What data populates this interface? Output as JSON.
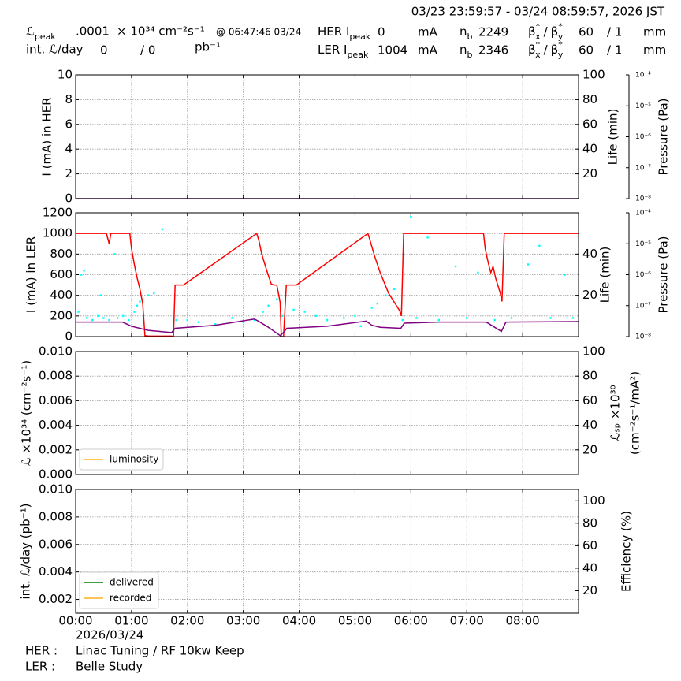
{
  "header": {
    "time_range": "03/23 23:59:57 - 03/24 08:59:57, 2026 JST",
    "lum_peak": {
      "label": "ℒ",
      "sub": "peak",
      "value": ".0001",
      "unit": "× 10³⁴ cm⁻²s⁻¹",
      "time": "@ 06:47:46 03/24"
    },
    "int_lum": {
      "label": "int. ℒ/day",
      "delivered": 0,
      "recorded": "/ 0",
      "unit": "pb⁻¹"
    },
    "her": {
      "label": "HER I",
      "sub": "peak",
      "current": 0,
      "current_unit": "mA",
      "nb": {
        "label": "n",
        "sub": "b",
        "value": 2249
      },
      "beta": {
        "a": "β",
        "a_sup": "*",
        "a_sub": "x",
        "sep": "/",
        "b": "β",
        "b_sup": "*",
        "b_sub": "y",
        "x_value": 60,
        "y_value": "/ 1",
        "unit": "mm"
      }
    },
    "ler": {
      "label": "LER I",
      "sub": "peak",
      "current": 1004,
      "current_unit": "mA",
      "nb": {
        "label": "n",
        "sub": "b",
        "value": 2346
      },
      "beta": {
        "a": "β",
        "a_sup": "*",
        "a_sub": "x",
        "sep": "/",
        "b": "β",
        "b_sup": "*",
        "b_sub": "y",
        "x_value": 60,
        "y_value": "/ 1",
        "unit": "mm"
      }
    }
  },
  "footer": {
    "her_label": "HER :",
    "her_status": "Linac Tuning / RF 10kw Keep",
    "ler_label": "LER :",
    "ler_status": "Belle Study"
  },
  "chart_data": [
    {
      "type": "line",
      "ylabel": "I (mA) in HER",
      "y2label": "Life (min)",
      "y3label": "Pressure (Pa)",
      "grid": true,
      "show_xticklabels": false,
      "xlim": [
        0,
        9
      ],
      "xticks": [
        {
          "value": 0,
          "label": "00:00"
        },
        {
          "value": 1,
          "label": "01:00"
        },
        {
          "value": 2,
          "label": "02:00"
        },
        {
          "value": 3,
          "label": "03:00"
        },
        {
          "value": 4,
          "label": "04:00"
        },
        {
          "value": 5,
          "label": "05:00"
        },
        {
          "value": 6,
          "label": "06:00"
        },
        {
          "value": 7,
          "label": "07:00"
        },
        {
          "value": 8,
          "label": "08:00"
        }
      ],
      "ylim": [
        0,
        10
      ],
      "yticks": [
        0,
        2,
        4,
        6,
        8,
        10
      ],
      "y2lim": [
        0,
        100
      ],
      "y2ticks": [
        20,
        40,
        60,
        80,
        100
      ],
      "y3log": true,
      "y3lim": [
        1e-08,
        0.0001
      ],
      "y3ticks": [
        {
          "value": 1e-08,
          "label": "10⁻⁸"
        },
        {
          "value": 1e-07,
          "label": "10⁻⁷"
        },
        {
          "value": 1e-06,
          "label": "10⁻⁶"
        },
        {
          "value": 1e-05,
          "label": "10⁻⁵"
        },
        {
          "value": 0.0001,
          "label": "10⁻⁴"
        }
      ],
      "series": [
        {
          "color": "#800080",
          "x": [
            0,
            9
          ],
          "values": [
            0,
            0
          ]
        }
      ]
    },
    {
      "type": "line",
      "ylabel": "I (mA) in LER",
      "y2label": "Life (min)",
      "y3label": "Pressure (Pa)",
      "grid": true,
      "show_xticklabels": false,
      "xlim": [
        0,
        9
      ],
      "xticks": [
        {
          "value": 0,
          "label": "00:00"
        },
        {
          "value": 1,
          "label": "01:00"
        },
        {
          "value": 2,
          "label": "02:00"
        },
        {
          "value": 3,
          "label": "03:00"
        },
        {
          "value": 4,
          "label": "04:00"
        },
        {
          "value": 5,
          "label": "05:00"
        },
        {
          "value": 6,
          "label": "06:00"
        },
        {
          "value": 7,
          "label": "07:00"
        },
        {
          "value": 8,
          "label": "08:00"
        }
      ],
      "ylim": [
        0,
        1200
      ],
      "yticks": [
        0,
        200,
        400,
        600,
        800,
        1000,
        1200
      ],
      "y2lim": [
        0,
        60
      ],
      "y2ticks": [
        20,
        40
      ],
      "y3log": true,
      "y3lim": [
        1e-08,
        0.0001
      ],
      "y3ticks": [
        {
          "value": 1e-08,
          "label": "10⁻⁸"
        },
        {
          "value": 1e-07,
          "label": "10⁻⁷"
        },
        {
          "value": 1e-06,
          "label": "10⁻⁶"
        },
        {
          "value": 1e-05,
          "label": "10⁻⁵"
        },
        {
          "value": 0.0001,
          "label": "10⁻⁴"
        }
      ],
      "series": [
        {
          "color": "#00ffff",
          "mode": "markers",
          "axis": "y2",
          "x": [
            0.05,
            0.1,
            0.15,
            0.2,
            0.3,
            0.4,
            0.45,
            0.5,
            0.6,
            0.7,
            0.75,
            0.85,
            0.95,
            1.05,
            1.1,
            1.15,
            1.2,
            1.3,
            1.4,
            1.55,
            1.8,
            2.0,
            2.2,
            2.5,
            2.8,
            3.0,
            3.2,
            3.35,
            3.45,
            3.6,
            3.7,
            3.9,
            4.1,
            4.3,
            4.5,
            4.8,
            5.0,
            5.1,
            5.3,
            5.4,
            5.55,
            5.7,
            5.85,
            6.0,
            6.1,
            6.3,
            6.5,
            6.8,
            7.0,
            7.2,
            7.5,
            7.8,
            8.1,
            8.3,
            8.5,
            8.75,
            8.9
          ],
          "values": [
            12,
            30,
            32,
            9,
            8,
            10,
            20,
            9,
            8,
            40,
            9,
            10,
            8,
            12,
            15,
            17,
            18,
            20,
            21,
            52,
            8,
            8,
            7,
            6,
            9,
            7,
            8,
            12,
            15,
            18,
            10,
            13,
            12,
            10,
            8,
            9,
            10,
            5,
            14,
            16,
            20,
            23,
            8,
            58,
            9,
            48,
            8,
            34,
            9,
            31,
            8,
            9,
            35,
            44,
            9,
            30,
            9
          ]
        },
        {
          "color": "#ff0000",
          "x": [
            0,
            0.55,
            0.6,
            0.63,
            0.97,
            1.0,
            1.05,
            1.1,
            1.15,
            1.2,
            1.24,
            1.3,
            1.72,
            1.75,
            1.78,
            1.93,
            3.24,
            3.28,
            3.33,
            3.42,
            3.5,
            3.55,
            3.6,
            3.66,
            3.68,
            3.72,
            3.77,
            3.95,
            5.23,
            5.27,
            5.35,
            5.45,
            5.6,
            5.8,
            5.83,
            5.87,
            5.9,
            7.3,
            7.33,
            7.37,
            7.4,
            7.43,
            7.47,
            7.52,
            7.6,
            7.63,
            7.67,
            7.7,
            9.0
          ],
          "values": [
            1000,
            1000,
            900,
            1000,
            1000,
            850,
            700,
            570,
            460,
            320,
            10,
            5,
            5,
            0,
            500,
            500,
            1000,
            930,
            800,
            640,
            510,
            500,
            500,
            330,
            0,
            0,
            500,
            500,
            1000,
            930,
            780,
            620,
            420,
            250,
            200,
            1000,
            1000,
            1000,
            850,
            750,
            680,
            620,
            680,
            560,
            420,
            340,
            1000,
            1000,
            1000
          ]
        },
        {
          "color": "#800080",
          "x": [
            0,
            0.84,
            1.0,
            1.3,
            1.69,
            1.72,
            1.78,
            2.5,
            3.2,
            3.3,
            3.45,
            3.66,
            3.72,
            3.78,
            4.5,
            5.2,
            5.3,
            5.45,
            5.82,
            5.88,
            6.5,
            7.35,
            7.62,
            7.7,
            9.0
          ],
          "values": [
            140,
            140,
            100,
            60,
            40,
            40,
            80,
            110,
            170,
            140,
            90,
            10,
            40,
            80,
            100,
            150,
            110,
            90,
            80,
            130,
            140,
            140,
            50,
            140,
            145
          ]
        }
      ]
    },
    {
      "type": "line",
      "ylabel": "ℒ ×10³⁴ (cm⁻²s⁻¹)",
      "y2label": [
        "ℒₛₚ ×10³⁰",
        "(cm⁻²s⁻¹/mA²)"
      ],
      "grid": true,
      "show_xticklabels": false,
      "legend": "lower left",
      "xlim": [
        0,
        9
      ],
      "xticks": [
        {
          "value": 0,
          "label": "00:00"
        },
        {
          "value": 1,
          "label": "01:00"
        },
        {
          "value": 2,
          "label": "02:00"
        },
        {
          "value": 3,
          "label": "03:00"
        },
        {
          "value": 4,
          "label": "04:00"
        },
        {
          "value": 5,
          "label": "05:00"
        },
        {
          "value": 6,
          "label": "06:00"
        },
        {
          "value": 7,
          "label": "07:00"
        },
        {
          "value": 8,
          "label": "08:00"
        }
      ],
      "ylim": [
        0,
        0.01
      ],
      "yticks": [
        {
          "value": 0,
          "label": "0.000"
        },
        0.002,
        0.004,
        0.006,
        0.008,
        {
          "value": 0.01,
          "label": "0.010"
        }
      ],
      "y2lim": [
        0,
        100
      ],
      "y2ticks": [
        20,
        40,
        60,
        80,
        100
      ],
      "series": [
        {
          "name": "luminosity",
          "color": "#ffb020",
          "x": [
            0,
            9
          ],
          "values": [
            0,
            0
          ]
        }
      ]
    },
    {
      "type": "line",
      "ylabel": "int. ℒ/day (pb⁻¹)",
      "y2label": "Efficiency (%)",
      "xlabel": "2026/03/24",
      "grid": true,
      "show_xticklabels": true,
      "legend": "lower left",
      "xlim": [
        0,
        9
      ],
      "xticks": [
        {
          "value": 0,
          "label": "00:00"
        },
        {
          "value": 1,
          "label": "01:00"
        },
        {
          "value": 2,
          "label": "02:00"
        },
        {
          "value": 3,
          "label": "03:00"
        },
        {
          "value": 4,
          "label": "04:00"
        },
        {
          "value": 5,
          "label": "05:00"
        },
        {
          "value": 6,
          "label": "06:00"
        },
        {
          "value": 7,
          "label": "07:00"
        },
        {
          "value": 8,
          "label": "08:00"
        }
      ],
      "ylim": [
        0.001,
        0.01
      ],
      "yticks": [
        0.002,
        0.004,
        0.006,
        0.008,
        {
          "value": 0.01,
          "label": "0.010"
        }
      ],
      "y2lim": [
        0,
        110
      ],
      "y2ticks": [
        20,
        40,
        60,
        80,
        100
      ],
      "series": [
        {
          "name": "delivered",
          "color": "#008000",
          "x": [],
          "values": []
        },
        {
          "name": "recorded",
          "color": "#ffb020",
          "x": [],
          "values": []
        }
      ]
    }
  ]
}
